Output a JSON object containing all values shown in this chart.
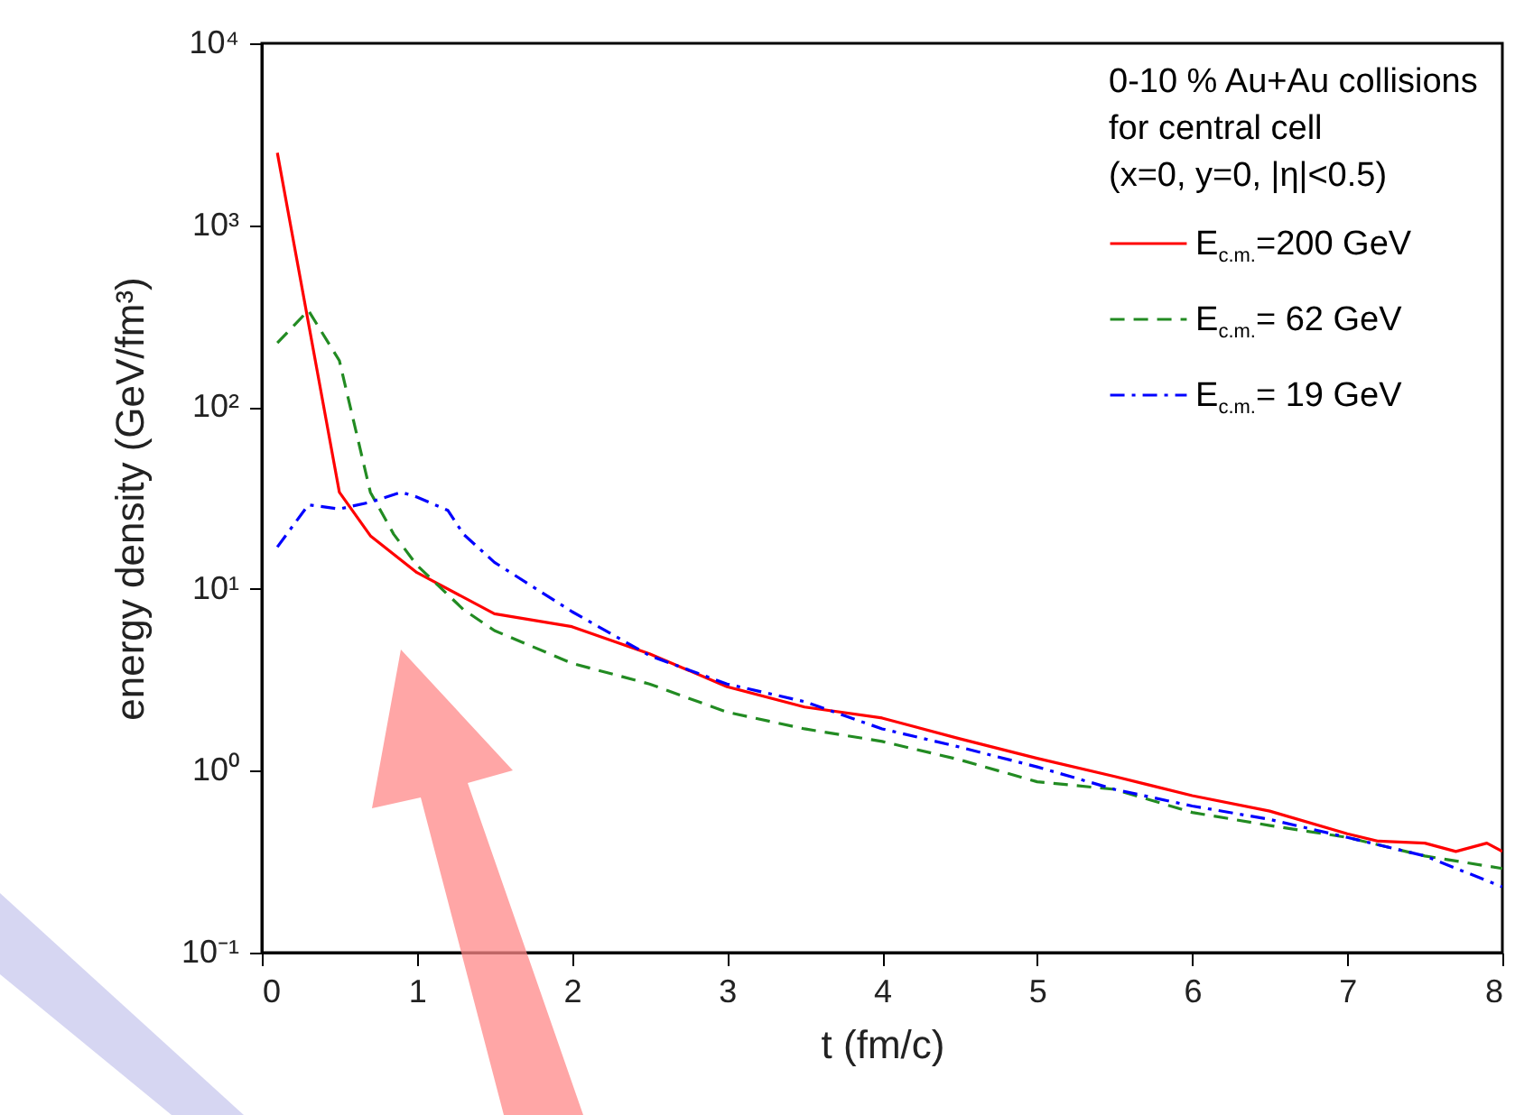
{
  "chart_data": {
    "type": "line",
    "xlabel": "t (fm/c)",
    "ylabel": "energy density (GeV/fm³)",
    "legend_title": "0-10 % Au+Au collisions\nfor central cell\n(x=0, y=0, |η|<0.5)",
    "legend": "top right",
    "log": "y",
    "grid": false,
    "xlim": [
      0,
      8
    ],
    "xticks": [
      0,
      1,
      2,
      3,
      4,
      5,
      6,
      7,
      8
    ],
    "ylim": [
      0.1,
      10000
    ],
    "yticks": [
      {
        "value": 0.1,
        "label": "10⁻¹"
      },
      {
        "value": 1,
        "label": "10⁰"
      },
      {
        "value": 10,
        "label": "10¹"
      },
      {
        "value": 100,
        "label": "10²"
      },
      {
        "value": 1000,
        "label": "10³"
      },
      {
        "value": 10000,
        "label": "10⁴"
      }
    ],
    "series": [
      {
        "name": "E$_{c.m.}$=200 GeV",
        "color": "#ff0000",
        "line_style": "solid",
        "x": [
          0.1,
          0.5,
          0.7,
          1,
          1.5,
          2,
          2.5,
          3,
          3.5,
          4,
          4.5,
          5,
          5.5,
          6,
          6.5,
          7,
          7.2,
          7.5,
          7.7,
          7.9,
          8
        ],
        "values": [
          2500,
          34,
          19.6,
          12.3,
          7.3,
          6.2,
          4.4,
          2.9,
          2.24,
          1.95,
          1.5,
          1.17,
          0.93,
          0.73,
          0.6,
          0.45,
          0.41,
          0.4,
          0.36,
          0.4,
          0.36
        ]
      },
      {
        "name": "E$_{c.m.}$= 62 GeV",
        "color": "#228b22",
        "line_style": "dashed",
        "x": [
          0.1,
          0.3,
          0.5,
          0.7,
          0.85,
          1,
          1.3,
          1.5,
          2,
          2.5,
          3,
          3.5,
          4,
          4.5,
          5,
          5.5,
          6,
          6.5,
          7,
          7.5,
          8
        ],
        "values": [
          225,
          340,
          180,
          34,
          20,
          13.5,
          7.7,
          5.9,
          3.9,
          3.0,
          2.1,
          1.7,
          1.45,
          1.15,
          0.87,
          0.79,
          0.59,
          0.5,
          0.43,
          0.34,
          0.29
        ]
      },
      {
        "name": "E$_{c.m.}$= 19 GeV",
        "color": "#0000ff",
        "line_style": "dotted",
        "x": [
          0.1,
          0.3,
          0.5,
          0.7,
          0.9,
          1,
          1.2,
          1.3,
          1.5,
          2,
          2.5,
          3,
          3.5,
          4,
          4.5,
          5,
          5.5,
          6,
          6.5,
          7,
          7.5,
          8
        ],
        "values": [
          17,
          29,
          27.5,
          30,
          34,
          32,
          27,
          20,
          14,
          7.5,
          4.3,
          3.0,
          2.4,
          1.7,
          1.35,
          1.05,
          0.79,
          0.64,
          0.54,
          0.43,
          0.34,
          0.23
        ]
      }
    ]
  }
}
